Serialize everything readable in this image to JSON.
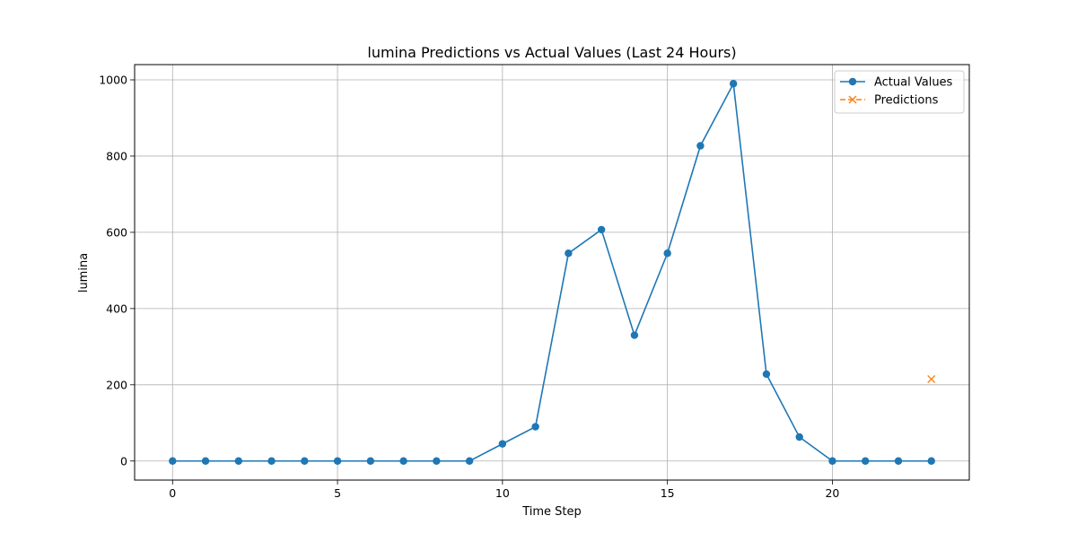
{
  "chart_data": {
    "type": "line",
    "title": "lumina Predictions vs Actual Values (Last 24 Hours)",
    "xlabel": "Time Step",
    "ylabel": "lumina",
    "xlim": [
      -1.15,
      24.15
    ],
    "ylim": [
      -50,
      1040
    ],
    "x_ticks": [
      0,
      5,
      10,
      15,
      20
    ],
    "y_ticks": [
      0,
      200,
      400,
      600,
      800,
      1000
    ],
    "grid": true,
    "legend_position": "top-right",
    "series": [
      {
        "name": "Actual Values",
        "color": "#1f77b4",
        "marker": "circle",
        "line_style": "solid",
        "x": [
          0,
          1,
          2,
          3,
          4,
          5,
          6,
          7,
          8,
          9,
          10,
          11,
          12,
          13,
          14,
          15,
          16,
          17,
          18,
          19,
          20,
          21,
          22,
          23
        ],
        "y": [
          0,
          0,
          0,
          0,
          0,
          0,
          0,
          0,
          0,
          0,
          45,
          90,
          545,
          607,
          330,
          545,
          827,
          990,
          228,
          63,
          0,
          0,
          0,
          0
        ]
      },
      {
        "name": "Predictions",
        "color": "#ff7f0e",
        "marker": "x",
        "line_style": "dashed",
        "x": [
          23
        ],
        "y": [
          215
        ]
      }
    ]
  }
}
